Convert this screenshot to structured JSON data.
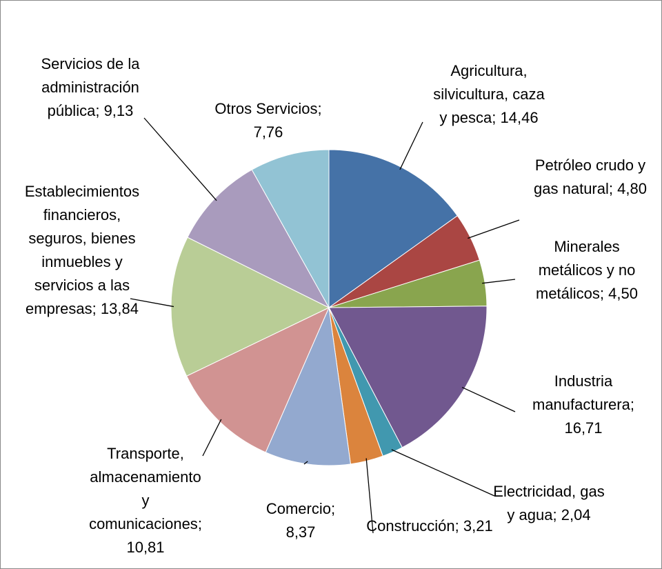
{
  "chart_data": {
    "type": "pie",
    "categories": [
      "Agricultura, silvicultura, caza y pesca",
      "Petróleo crudo y gas natural",
      "Minerales metálicos y no metálicos",
      "Industria manufacturera",
      "Electricidad, gas y agua",
      "Construcción",
      "Comercio",
      "Transporte, almacenamiento y comunicaciones",
      "Establecimientos financieros, seguros, bienes inmuebles y servicios a las empresas",
      "Servicios de la administración pública",
      "Otros Servicios"
    ],
    "values": [
      14.46,
      4.8,
      4.5,
      16.71,
      2.04,
      3.21,
      8.37,
      10.81,
      13.84,
      9.13,
      7.76
    ],
    "value_labels": [
      "14,46",
      "4,80",
      "4,50",
      "16,71",
      "2,04",
      "3,21",
      "8,37",
      "10,81",
      "13,84",
      "9,13",
      "7,76"
    ],
    "colors": [
      "#4572A7",
      "#AA4643",
      "#89A54E",
      "#71588F",
      "#4198AF",
      "#DB843D",
      "#93A9CF",
      "#D19392",
      "#B9CD96",
      "#A99BBD",
      "#92C3D4"
    ]
  }
}
